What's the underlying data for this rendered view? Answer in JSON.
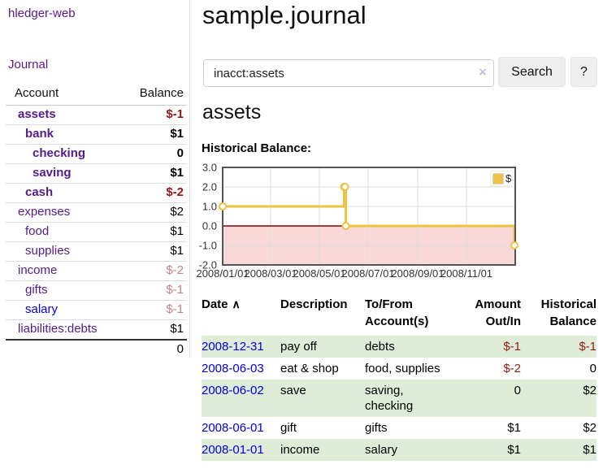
{
  "app": {
    "brand": "hledger-web"
  },
  "sidebar": {
    "journal_label": "Journal",
    "accounts_table": {
      "account_header": "Account",
      "balance_header": "Balance",
      "rows": [
        {
          "name": "assets",
          "balance": "$-1"
        },
        {
          "name": "bank",
          "balance": "$1"
        },
        {
          "name": "checking",
          "balance": "0"
        },
        {
          "name": "saving",
          "balance": "$1"
        },
        {
          "name": "cash",
          "balance": "$-2"
        },
        {
          "name": "expenses",
          "balance": "$2"
        },
        {
          "name": "food",
          "balance": "$1"
        },
        {
          "name": "supplies",
          "balance": "$1"
        },
        {
          "name": "income",
          "balance": "$-2"
        },
        {
          "name": "gifts",
          "balance": "$-1"
        },
        {
          "name": "salary",
          "balance": "$-1"
        },
        {
          "name": "liabilities:debts",
          "balance": "$1"
        }
      ],
      "total_balance": "0"
    }
  },
  "main": {
    "title": "sample.journal",
    "search": {
      "value": "inacct:assets",
      "clear_icon": "×",
      "search_button": "Search",
      "help_button": "?"
    },
    "account_heading": "assets",
    "chart_title": "Historical Balance:"
  },
  "chart_data": {
    "type": "line",
    "step": true,
    "title": "Historical Balance",
    "x": [
      "2008-01-01",
      "2008-06-01",
      "2008-06-02",
      "2008-06-03",
      "2008-12-31"
    ],
    "x_days": [
      0,
      152,
      153,
      154,
      365
    ],
    "values": [
      1,
      2,
      2,
      0,
      -1
    ],
    "xlim_days": [
      0,
      366
    ],
    "ylim": [
      -2,
      3
    ],
    "y_ticks": [
      "3.0",
      "2.0",
      "1.0",
      "0.0",
      "-1.0",
      "-2.0"
    ],
    "x_ticks": [
      {
        "label": "2008/01/01",
        "day": 0
      },
      {
        "label": "2008/03/01",
        "day": 60
      },
      {
        "label": "2008/05/01",
        "day": 121
      },
      {
        "label": "2008/07/01",
        "day": 182
      },
      {
        "label": "2008/09/01",
        "day": 244
      },
      {
        "label": "2008/11/01",
        "day": 305
      }
    ],
    "legend": [
      {
        "label": "$",
        "color": "#EDC240"
      }
    ],
    "colors": {
      "series": "#EDC240",
      "negative_fill": "#F8D8D8",
      "zero_line": "#8B0000",
      "grid": "#DCDCDC",
      "border": "#545454"
    }
  },
  "register": {
    "sort_indicator": "∧",
    "headers": {
      "date": "Date",
      "description": "Description",
      "accounts": "To/From Account(s)",
      "amount": "Amount Out/In",
      "balance": "Historical Balance"
    },
    "rows": [
      {
        "date": "2008-12-31",
        "description": "pay off",
        "accounts": "debts",
        "amount": "$-1",
        "balance": "$-1"
      },
      {
        "date": "2008-06-03",
        "description": "eat & shop",
        "accounts": "food, supplies",
        "amount": "$-2",
        "balance": "0"
      },
      {
        "date": "2008-06-02",
        "description": "save",
        "accounts": "saving, checking",
        "amount": "0",
        "balance": "$2"
      },
      {
        "date": "2008-06-01",
        "description": "gift",
        "accounts": "gifts",
        "amount": "$1",
        "balance": "$2"
      },
      {
        "date": "2008-01-01",
        "description": "income",
        "accounts": "salary",
        "amount": "$1",
        "balance": "$1"
      }
    ]
  },
  "colors": {
    "link_purple": "#551A8B",
    "link_blue": "#0000E0",
    "negative_strong": "#971717",
    "negative_muted": "#C08383",
    "row_green": "#DEECD8"
  }
}
